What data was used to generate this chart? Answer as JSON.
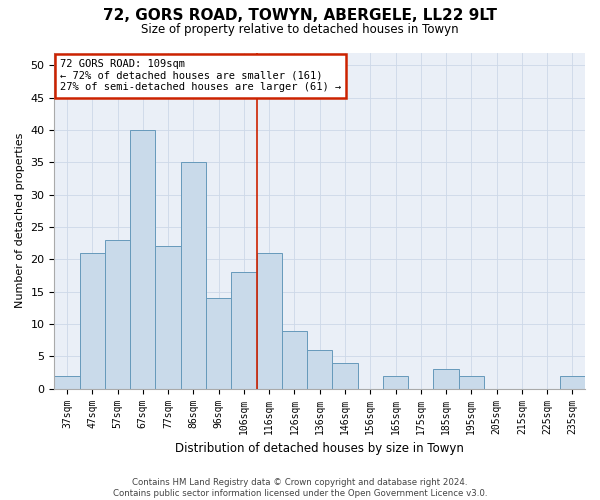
{
  "title_line1": "72, GORS ROAD, TOWYN, ABERGELE, LL22 9LT",
  "title_line2": "Size of property relative to detached houses in Towyn",
  "xlabel": "Distribution of detached houses by size in Towyn",
  "ylabel": "Number of detached properties",
  "categories": [
    "37sqm",
    "47sqm",
    "57sqm",
    "67sqm",
    "77sqm",
    "86sqm",
    "96sqm",
    "106sqm",
    "116sqm",
    "126sqm",
    "136sqm",
    "146sqm",
    "156sqm",
    "165sqm",
    "175sqm",
    "185sqm",
    "195sqm",
    "205sqm",
    "215sqm",
    "225sqm",
    "235sqm"
  ],
  "values": [
    2,
    21,
    23,
    40,
    22,
    35,
    14,
    18,
    21,
    9,
    6,
    4,
    0,
    2,
    0,
    3,
    2,
    0,
    0,
    0,
    2
  ],
  "bar_color": "#c9daea",
  "bar_edge_color": "#6699bb",
  "vline_bar_index": 7.5,
  "vline_color": "#cc2200",
  "annotation_text": "72 GORS ROAD: 109sqm\n← 72% of detached houses are smaller (161)\n27% of semi-detached houses are larger (61) →",
  "annotation_box_color": "#cc2200",
  "ylim": [
    0,
    52
  ],
  "yticks": [
    0,
    5,
    10,
    15,
    20,
    25,
    30,
    35,
    40,
    45,
    50
  ],
  "grid_color": "#cdd8e8",
  "bg_color": "#eaeff7",
  "footnote_line1": "Contains HM Land Registry data © Crown copyright and database right 2024.",
  "footnote_line2": "Contains public sector information licensed under the Open Government Licence v3.0."
}
